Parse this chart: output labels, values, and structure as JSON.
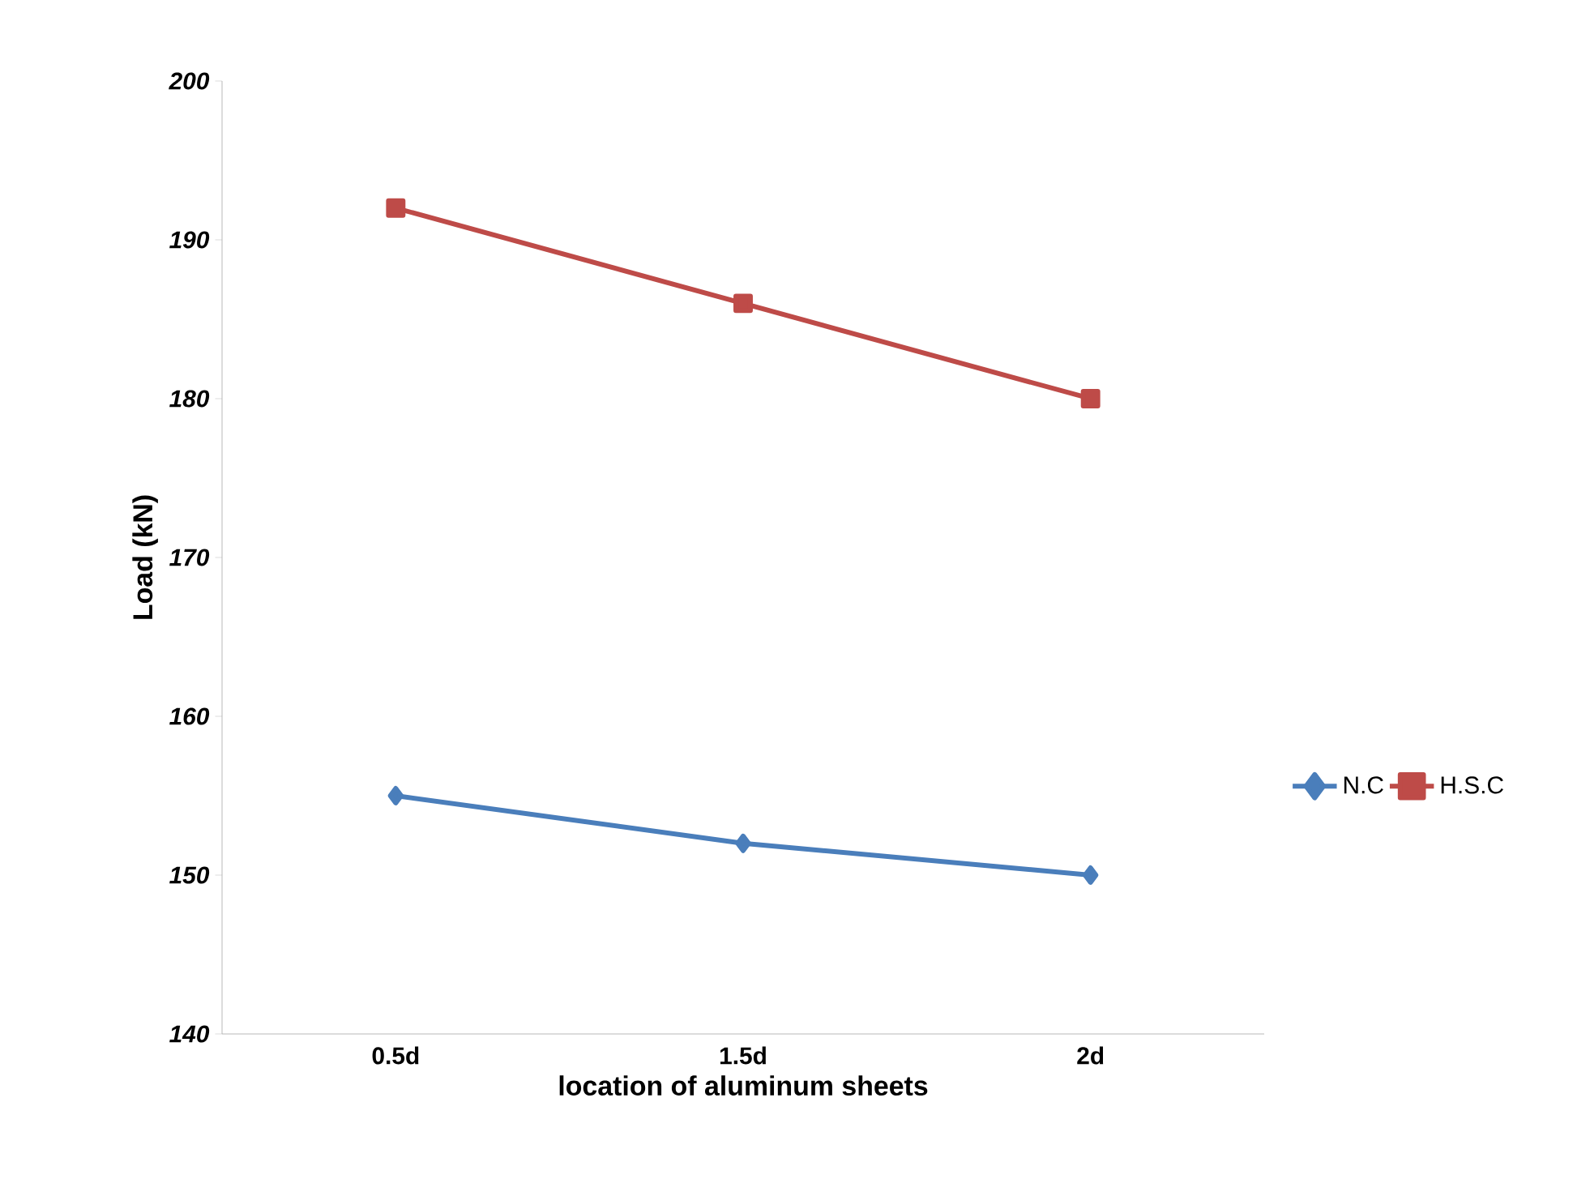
{
  "chart_data": {
    "type": "line",
    "xlabel": "location of aluminum sheets",
    "ylabel": "Load (kN)",
    "categories": [
      "0.5d",
      "1.5d",
      "2d"
    ],
    "series": [
      {
        "name": "N.C",
        "color": "#4a7ebb",
        "values": [
          155,
          152,
          150
        ],
        "marker": "diamond"
      },
      {
        "name": "H.S.C",
        "color": "#be4b48",
        "values": [
          192,
          186,
          180
        ],
        "marker": "square"
      }
    ],
    "ylim": [
      140,
      200
    ],
    "yticks": [
      140,
      150,
      160,
      170,
      180,
      190,
      200
    ],
    "grid": false,
    "legend": "right",
    "line_style": "solid"
  }
}
